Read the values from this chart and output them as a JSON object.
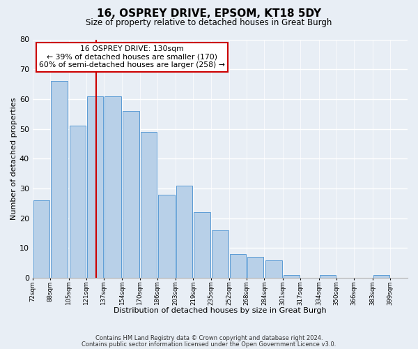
{
  "title": "16, OSPREY DRIVE, EPSOM, KT18 5DY",
  "subtitle": "Size of property relative to detached houses in Great Burgh",
  "xlabel": "Distribution of detached houses by size in Great Burgh",
  "ylabel": "Number of detached properties",
  "footer1": "Contains HM Land Registry data © Crown copyright and database right 2024.",
  "footer2": "Contains public sector information licensed under the Open Government Licence v3.0.",
  "bin_labels": [
    "72sqm",
    "88sqm",
    "105sqm",
    "121sqm",
    "137sqm",
    "154sqm",
    "170sqm",
    "186sqm",
    "203sqm",
    "219sqm",
    "235sqm",
    "252sqm",
    "268sqm",
    "284sqm",
    "301sqm",
    "317sqm",
    "334sqm",
    "350sqm",
    "366sqm",
    "383sqm",
    "399sqm"
  ],
  "bin_edges": [
    72,
    88,
    105,
    121,
    137,
    154,
    170,
    186,
    203,
    219,
    235,
    252,
    268,
    284,
    301,
    317,
    334,
    350,
    366,
    383,
    399
  ],
  "bar_heights": [
    26,
    66,
    51,
    61,
    61,
    56,
    49,
    28,
    31,
    22,
    16,
    8,
    7,
    6,
    1,
    0,
    1,
    0,
    0,
    1,
    0
  ],
  "bar_color": "#b8d0e8",
  "bar_edge_color": "#5b9bd5",
  "reference_line_x": 130,
  "reference_line_color": "#cc0000",
  "ylim": [
    0,
    80
  ],
  "yticks": [
    0,
    10,
    20,
    30,
    40,
    50,
    60,
    70,
    80
  ],
  "annotation_title": "16 OSPREY DRIVE: 130sqm",
  "annotation_line1": "← 39% of detached houses are smaller (170)",
  "annotation_line2": "60% of semi-detached houses are larger (258) →",
  "annotation_box_color": "white",
  "annotation_box_edge_color": "#cc0000",
  "bg_color": "#e8eef5"
}
